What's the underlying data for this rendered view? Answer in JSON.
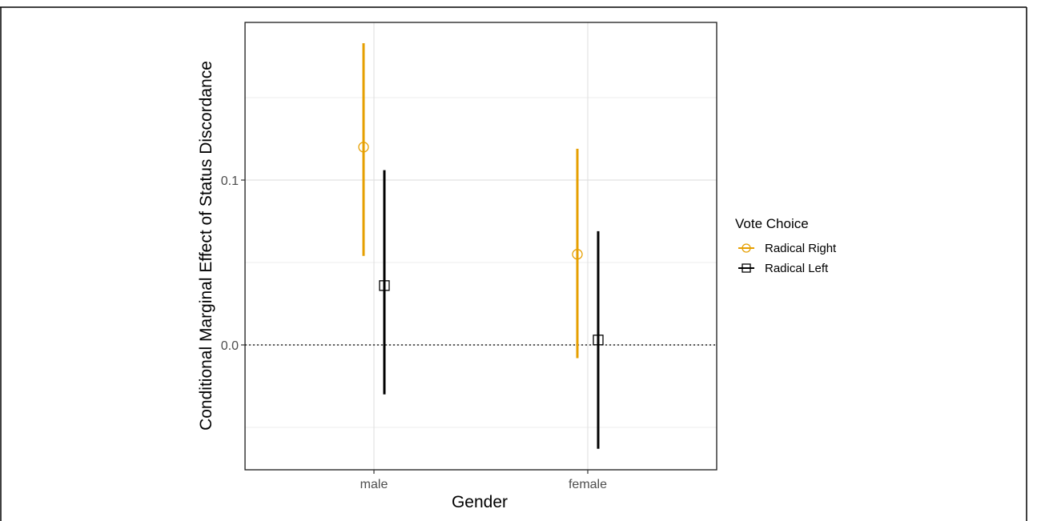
{
  "chart_data": {
    "type": "errorbar",
    "xlabel": "Gender",
    "ylabel": "Conditional Marginal Effect of Status Discordance",
    "categories": [
      "male",
      "female"
    ],
    "y_ticks": [
      0.0,
      0.1
    ],
    "y_tick_labels": [
      "0.0",
      "0.1"
    ],
    "ylim": [
      -0.075,
      0.195
    ],
    "reference_line": 0,
    "grid": true,
    "legend": {
      "title": "Vote Choice",
      "position": "right"
    },
    "series": [
      {
        "name": "Radical Right",
        "color": "#E69F00",
        "marker": "circle",
        "estimates": [
          0.12,
          0.055
        ],
        "lower": [
          0.054,
          -0.008
        ],
        "upper": [
          0.183,
          0.119
        ]
      },
      {
        "name": "Radical Left",
        "color": "#000000",
        "marker": "square",
        "estimates": [
          0.036,
          0.003
        ],
        "lower": [
          -0.03,
          -0.063
        ],
        "upper": [
          0.106,
          0.069
        ]
      }
    ]
  }
}
